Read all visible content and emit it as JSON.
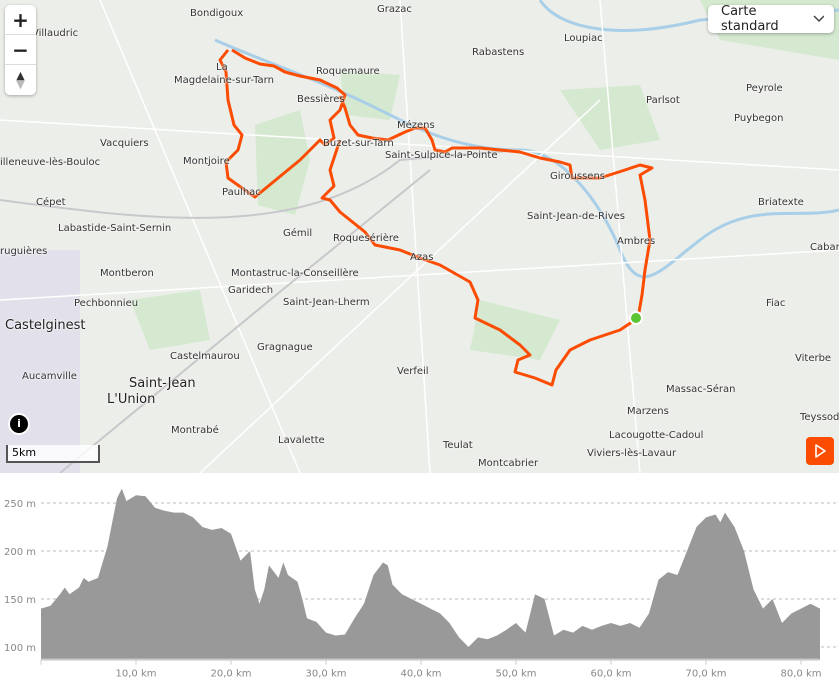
{
  "map": {
    "style_select": {
      "value": "Carte standard",
      "icon": "chevron-down-icon"
    },
    "controls": {
      "zoom_in": "+",
      "zoom_out": "−",
      "compass": "compass-icon"
    },
    "scale": "5km",
    "info_icon": "i",
    "play_icon": "play-icon",
    "route_color": "#fc4c02",
    "start_color": "#5cc534",
    "places": [
      "Bondigoux",
      "Grazac",
      "Villaudric",
      "Rabastens",
      "Loupiac",
      "La",
      "Magdelaine-sur-Tarn",
      "Roquemaure",
      "Bessières",
      "Peyrole",
      "Parlsot",
      "Puybegon",
      "Vacquiers",
      "Mézens",
      "Buzet-sur-Tarn",
      "Montjoire",
      "Saint-Sulpice-la-Pointe",
      "Giroussens",
      "illeneuve-lès-Bouloc",
      "Paulhac",
      "Briatexte",
      "Cépet",
      "Saint-Jean-de-Rives",
      "Labastide-Saint-Sernin",
      "Gémil",
      "Roquesérière",
      "Ambres",
      "ruguières",
      "Azas",
      "Cabar",
      "Montberon",
      "Montastruc-la-Conseillère",
      "Garidech",
      "Pechbonnieu",
      "Saint-Jean-Lherm",
      "Fiac",
      "Castelginest",
      "Castelmaurou",
      "Gragnague",
      "Viterbe",
      "Aucamville",
      "Saint-Jean",
      "Massac-Séran",
      "L'Union",
      "Verfeil",
      "Marzens",
      "Teyssod",
      "Montrabé",
      "Lavalette",
      "Lacougotte-Cadoul",
      "Teulat",
      "Montcabrier",
      "Viviers-lès-Lavaur"
    ]
  },
  "chart_data": {
    "type": "area",
    "xlabel": "",
    "ylabel": "",
    "x_unit": "km",
    "y_unit": "m",
    "xticks": [
      "10,0 km",
      "20,0 km",
      "30,0 km",
      "40,0 km",
      "50,0 km",
      "60,0 km",
      "70,0 km",
      "80,0 km"
    ],
    "yticks": [
      "100 m",
      "150 m",
      "200 m",
      "250 m"
    ],
    "xlim": [
      0,
      82
    ],
    "ylim": [
      90,
      270
    ],
    "grid": true,
    "fill_color": "#999999",
    "x": [
      0,
      1,
      2,
      2.5,
      3,
      4,
      4.5,
      5,
      6,
      7,
      8,
      8.5,
      9,
      10,
      11,
      12,
      13,
      14,
      15,
      16,
      17,
      18,
      19,
      20,
      21,
      22,
      22.5,
      23,
      23.5,
      24,
      25,
      25.5,
      26,
      27,
      27.5,
      28,
      29,
      30,
      31,
      32,
      33,
      34,
      35,
      36,
      36.5,
      37,
      38,
      39,
      40,
      41,
      42,
      43,
      44,
      45,
      46,
      47,
      48,
      49,
      50,
      51,
      52,
      53,
      54,
      55,
      56,
      57,
      58,
      59,
      60,
      61,
      62,
      63,
      64,
      65,
      66,
      67,
      68,
      69,
      70,
      71,
      71.5,
      72,
      73,
      74,
      75,
      76,
      77,
      78,
      79,
      80,
      81,
      82
    ],
    "y": [
      140,
      143,
      155,
      162,
      155,
      162,
      172,
      168,
      172,
      205,
      255,
      265,
      252,
      258,
      257,
      245,
      242,
      240,
      240,
      235,
      225,
      222,
      224,
      218,
      190,
      200,
      160,
      145,
      160,
      185,
      172,
      188,
      175,
      168,
      150,
      130,
      126,
      115,
      112,
      113,
      130,
      145,
      175,
      188,
      185,
      165,
      155,
      150,
      145,
      140,
      135,
      125,
      110,
      100,
      110,
      108,
      112,
      118,
      125,
      115,
      155,
      150,
      112,
      118,
      115,
      122,
      118,
      122,
      125,
      122,
      125,
      120,
      135,
      170,
      178,
      175,
      200,
      225,
      235,
      238,
      230,
      240,
      225,
      200,
      160,
      140,
      150,
      125,
      135,
      140,
      145,
      140
    ]
  }
}
